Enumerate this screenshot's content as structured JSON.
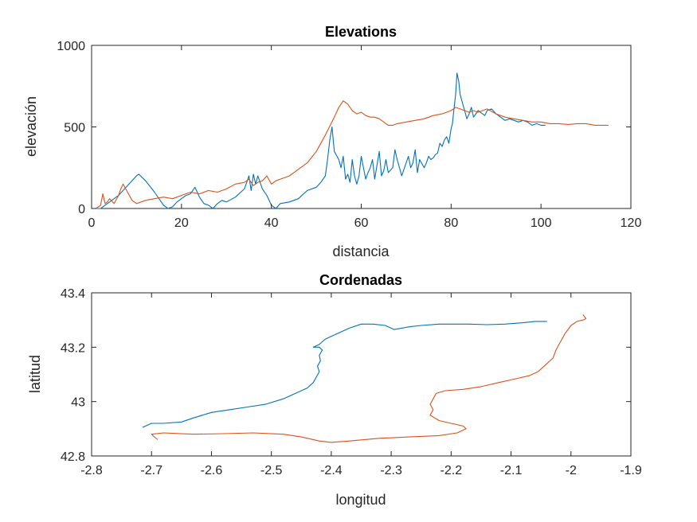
{
  "colors": {
    "series1": "#0072BD",
    "series2": "#D95319",
    "axis": "#262626"
  },
  "chart_data": [
    {
      "type": "line",
      "title": "Elevations",
      "xlabel": "distancia",
      "ylabel": "elevación",
      "xlim": [
        0,
        120
      ],
      "ylim": [
        0,
        1000
      ],
      "xticks": [
        0,
        20,
        40,
        60,
        80,
        100,
        120
      ],
      "yticks": [
        0,
        500,
        1000
      ],
      "xtick_labels": [
        "0",
        "20",
        "40",
        "60",
        "80",
        "100",
        "120"
      ],
      "ytick_labels": [
        "0",
        "500",
        "1000"
      ],
      "grid": false,
      "series": [
        {
          "color": "#0072BD",
          "x": [
            0,
            2,
            4,
            6,
            8,
            10,
            10.5,
            12,
            14,
            16,
            17,
            18,
            19,
            20,
            21,
            22,
            23,
            24,
            25,
            26,
            27,
            28,
            29,
            30,
            32,
            34,
            35,
            35.5,
            36,
            36.5,
            37,
            38,
            39,
            40,
            41,
            42,
            44,
            46,
            48,
            50,
            51,
            52,
            52.5,
            53,
            53.5,
            54,
            55,
            55.5,
            56,
            56.5,
            57,
            57.5,
            58,
            58.5,
            59,
            59.5,
            60,
            60.5,
            61,
            61.5,
            62,
            62.5,
            63,
            64,
            64.5,
            65,
            65.5,
            66,
            67,
            67.5,
            68,
            68.5,
            69,
            70,
            70.5,
            71,
            71.5,
            72,
            72.5,
            73,
            74,
            74.5,
            75,
            75.5,
            76,
            76.5,
            77,
            77.5,
            78,
            78.5,
            79,
            79.5,
            80,
            80.3,
            80.6,
            81,
            81.3,
            81.7,
            82,
            82.5,
            83,
            83.5,
            84,
            84.5,
            85,
            86,
            87,
            87.5,
            88,
            89,
            90,
            91,
            92,
            93,
            94,
            95,
            96,
            97,
            98,
            99,
            100,
            101
          ],
          "y": [
            0,
            0,
            40,
            80,
            140,
            200,
            210,
            170,
            100,
            20,
            0,
            10,
            40,
            60,
            80,
            90,
            130,
            70,
            30,
            20,
            0,
            30,
            50,
            40,
            70,
            120,
            200,
            110,
            210,
            150,
            200,
            120,
            80,
            20,
            0,
            30,
            40,
            60,
            110,
            130,
            160,
            200,
            300,
            420,
            500,
            350,
            300,
            250,
            320,
            180,
            210,
            160,
            300,
            200,
            150,
            200,
            320,
            250,
            180,
            220,
            250,
            300,
            180,
            350,
            200,
            230,
            300,
            220,
            250,
            360,
            300,
            250,
            200,
            280,
            320,
            250,
            280,
            360,
            220,
            300,
            250,
            280,
            320,
            300,
            310,
            330,
            340,
            400,
            380,
            420,
            440,
            400,
            490,
            520,
            600,
            700,
            830,
            780,
            700,
            650,
            600,
            550,
            580,
            620,
            560,
            600,
            580,
            570,
            600,
            610,
            580,
            560,
            540,
            550,
            540,
            530,
            540,
            530,
            510,
            520,
            510,
            510
          ]
        },
        {
          "color": "#D95319",
          "x": [
            0,
            1,
            2,
            2.5,
            3,
            3.5,
            4,
            5,
            6,
            6.5,
            7,
            8,
            9,
            10,
            12,
            14,
            16,
            18,
            20,
            22,
            24,
            26,
            28,
            30,
            32,
            34,
            35,
            36,
            37,
            38,
            39,
            40,
            41,
            42,
            43,
            44,
            45,
            46,
            47,
            48,
            50,
            52,
            54,
            55,
            56,
            57,
            58,
            59,
            60,
            61,
            62,
            63,
            64,
            65,
            66,
            67,
            68,
            70,
            72,
            74,
            76,
            78,
            80,
            81,
            82,
            83,
            84,
            85,
            86,
            87,
            88,
            90,
            92,
            94,
            96,
            98,
            100,
            102,
            104,
            106,
            108,
            110,
            112,
            114,
            115
          ],
          "y": [
            0,
            0,
            20,
            90,
            30,
            40,
            60,
            30,
            80,
            120,
            150,
            100,
            50,
            30,
            50,
            60,
            70,
            60,
            80,
            100,
            90,
            110,
            100,
            120,
            150,
            160,
            180,
            140,
            160,
            170,
            200,
            150,
            170,
            180,
            190,
            200,
            220,
            240,
            260,
            280,
            350,
            450,
            560,
            620,
            660,
            640,
            600,
            580,
            590,
            570,
            560,
            560,
            550,
            530,
            510,
            510,
            520,
            530,
            540,
            550,
            570,
            580,
            600,
            620,
            610,
            600,
            590,
            600,
            590,
            600,
            610,
            580,
            560,
            550,
            540,
            530,
            530,
            520,
            520,
            515,
            520,
            520,
            510,
            510,
            510
          ]
        }
      ]
    },
    {
      "type": "line",
      "title": "Cordenadas",
      "xlabel": "longitud",
      "ylabel": "latitud",
      "xlim": [
        -2.8,
        -1.9
      ],
      "ylim": [
        42.8,
        43.4
      ],
      "xticks": [
        -2.8,
        -2.7,
        -2.6,
        -2.5,
        -2.4,
        -2.3,
        -2.2,
        -2.1,
        -2.0,
        -1.9
      ],
      "yticks": [
        42.8,
        43.0,
        43.2,
        43.4
      ],
      "xtick_labels": [
        "-2.8",
        "-2.7",
        "-2.6",
        "-2.5",
        "-2.4",
        "-2.3",
        "-2.2",
        "-2.1",
        "-2",
        "-1.9"
      ],
      "ytick_labels": [
        "42.8",
        "43",
        "43.2",
        "43.4"
      ],
      "grid": false,
      "series": [
        {
          "color": "#0072BD",
          "x": [
            -2.715,
            -2.7,
            -2.68,
            -2.65,
            -2.63,
            -2.6,
            -2.57,
            -2.54,
            -2.51,
            -2.48,
            -2.46,
            -2.44,
            -2.43,
            -2.425,
            -2.42,
            -2.423,
            -2.418,
            -2.42,
            -2.415,
            -2.42,
            -2.43,
            -2.42,
            -2.41,
            -2.39,
            -2.37,
            -2.35,
            -2.33,
            -2.31,
            -2.295,
            -2.27,
            -2.25,
            -2.22,
            -2.2,
            -2.17,
            -2.14,
            -2.11,
            -2.08,
            -2.06,
            -2.04
          ],
          "y": [
            42.905,
            42.92,
            42.92,
            42.925,
            42.94,
            42.96,
            42.97,
            42.98,
            42.99,
            43.01,
            43.03,
            43.05,
            43.07,
            43.09,
            43.11,
            43.13,
            43.15,
            43.17,
            43.19,
            43.2,
            43.2,
            43.21,
            43.23,
            43.25,
            43.27,
            43.285,
            43.285,
            43.28,
            43.265,
            43.275,
            43.28,
            43.285,
            43.285,
            43.285,
            43.283,
            43.285,
            43.29,
            43.295,
            43.295
          ]
        },
        {
          "color": "#D95319",
          "x": [
            -2.69,
            -2.7,
            -2.68,
            -2.63,
            -2.58,
            -2.53,
            -2.48,
            -2.45,
            -2.42,
            -2.4,
            -2.37,
            -2.32,
            -2.27,
            -2.22,
            -2.19,
            -2.175,
            -2.18,
            -2.2,
            -2.22,
            -2.235,
            -2.23,
            -2.235,
            -2.23,
            -2.225,
            -2.21,
            -2.18,
            -2.15,
            -2.12,
            -2.09,
            -2.07,
            -2.055,
            -2.04,
            -2.03,
            -2.025,
            -2.02,
            -2.015,
            -2.01,
            -2.0,
            -1.99,
            -1.98,
            -1.975,
            -1.98
          ],
          "y": [
            42.86,
            42.88,
            42.885,
            42.88,
            42.882,
            42.885,
            42.88,
            42.87,
            42.855,
            42.85,
            42.855,
            42.865,
            42.87,
            42.875,
            42.885,
            42.9,
            42.91,
            42.92,
            42.93,
            42.95,
            42.97,
            42.99,
            43.01,
            43.03,
            43.04,
            43.045,
            43.055,
            43.07,
            43.085,
            43.095,
            43.11,
            43.14,
            43.16,
            43.19,
            43.21,
            43.23,
            43.25,
            43.28,
            43.295,
            43.3,
            43.305,
            43.32
          ]
        }
      ]
    }
  ]
}
